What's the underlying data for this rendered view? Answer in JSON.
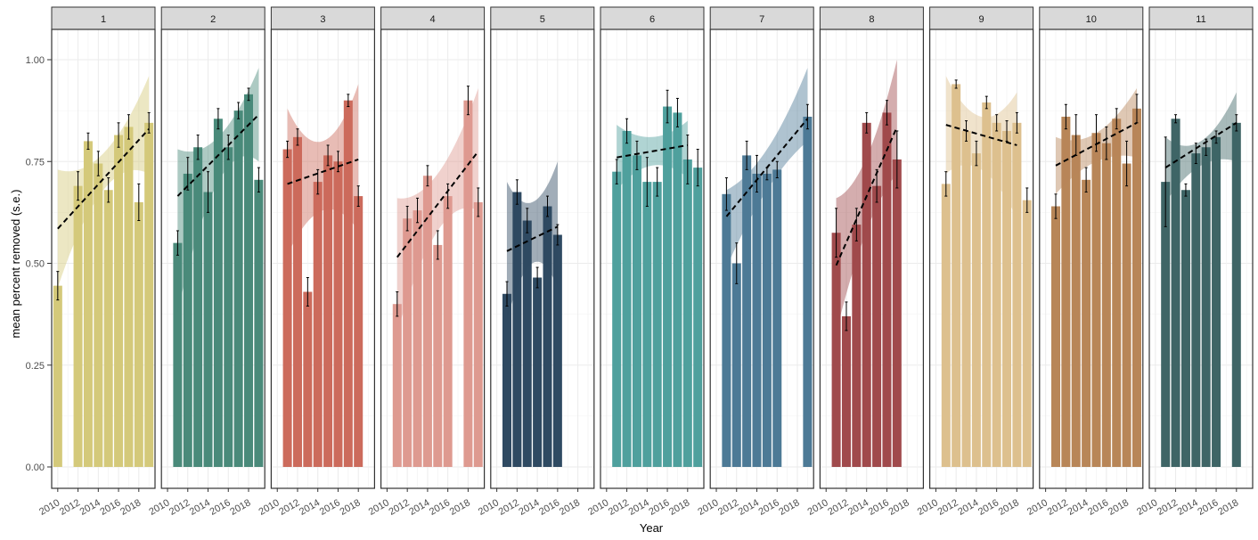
{
  "chart_data": {
    "type": "bar",
    "title": "",
    "xlabel": "Year",
    "ylabel": "mean percent removed (s.e.)",
    "ylim": [
      -0.05,
      1.08
    ],
    "xlim": [
      2009.4,
      2019.6
    ],
    "yticks": [
      0.0,
      0.25,
      0.5,
      0.75,
      1.0
    ],
    "ytick_labels": [
      "0.00",
      "0.25",
      "0.50",
      "0.75",
      "1.00"
    ],
    "xticks": [
      2010,
      2012,
      2014,
      2016,
      2018
    ],
    "xtick_labels": [
      "2010",
      "2012",
      "2014",
      "2016",
      "2018"
    ],
    "grid": true,
    "legend": "none",
    "trend_line_color": "#000000",
    "panels": [
      {
        "label": "1",
        "color": "#D4C97A",
        "years": [
          2010,
          2012,
          2013,
          2014,
          2015,
          2016,
          2017,
          2018,
          2019
        ],
        "values": [
          0.445,
          0.69,
          0.8,
          0.745,
          0.68,
          0.815,
          0.835,
          0.65,
          0.845
        ],
        "se": [
          0.035,
          0.035,
          0.02,
          0.03,
          0.03,
          0.03,
          0.03,
          0.045,
          0.025
        ],
        "trend": {
          "x": [
            2010,
            2019
          ],
          "y": [
            0.585,
            0.83
          ]
        },
        "ribbon": {
          "x": [
            2010,
            2014.5,
            2019
          ],
          "upper": [
            0.73,
            0.77,
            0.96
          ],
          "lower": [
            0.44,
            0.68,
            0.72
          ]
        }
      },
      {
        "label": "2",
        "color": "#4A8A7A",
        "years": [
          2011,
          2012,
          2013,
          2014,
          2015,
          2016,
          2017,
          2018,
          2019
        ],
        "values": [
          0.55,
          0.72,
          0.785,
          0.675,
          0.855,
          0.785,
          0.875,
          0.915,
          0.705
        ],
        "se": [
          0.03,
          0.04,
          0.03,
          0.05,
          0.025,
          0.03,
          0.02,
          0.015,
          0.03
        ],
        "trend": {
          "x": [
            2011,
            2019
          ],
          "y": [
            0.665,
            0.865
          ]
        },
        "ribbon": {
          "x": [
            2011,
            2015,
            2019
          ],
          "upper": [
            0.78,
            0.81,
            0.98
          ],
          "lower": [
            0.38,
            0.7,
            0.75
          ]
        }
      },
      {
        "label": "3",
        "color": "#CC6B5C",
        "years": [
          2011,
          2012,
          2013,
          2014,
          2015,
          2016,
          2017,
          2018
        ],
        "values": [
          0.78,
          0.81,
          0.43,
          0.7,
          0.765,
          0.75,
          0.9,
          0.665
        ],
        "se": [
          0.02,
          0.02,
          0.035,
          0.03,
          0.025,
          0.025,
          0.015,
          0.025
        ],
        "trend": {
          "x": [
            2011,
            2018
          ],
          "y": [
            0.695,
            0.755
          ]
        },
        "ribbon": {
          "x": [
            2011,
            2014.5,
            2018
          ],
          "upper": [
            0.88,
            0.8,
            0.94
          ],
          "lower": [
            0.52,
            0.63,
            0.58
          ]
        }
      },
      {
        "label": "4",
        "color": "#DE9A90",
        "years": [
          2011,
          2012,
          2013,
          2014,
          2015,
          2016,
          2018,
          2019
        ],
        "values": [
          0.4,
          0.61,
          0.63,
          0.715,
          0.545,
          0.665,
          0.9,
          0.65
        ],
        "se": [
          0.03,
          0.03,
          0.03,
          0.025,
          0.035,
          0.03,
          0.035,
          0.035
        ],
        "trend": {
          "x": [
            2011,
            2019
          ],
          "y": [
            0.515,
            0.775
          ]
        },
        "ribbon": {
          "x": [
            2011,
            2015,
            2019
          ],
          "upper": [
            0.66,
            0.72,
            0.93
          ],
          "lower": [
            0.33,
            0.58,
            0.63
          ]
        }
      },
      {
        "label": "5",
        "color": "#2F4A62",
        "years": [
          2011,
          2012,
          2013,
          2014,
          2015,
          2016
        ],
        "values": [
          0.425,
          0.675,
          0.605,
          0.465,
          0.64,
          0.57
        ],
        "se": [
          0.03,
          0.03,
          0.03,
          0.025,
          0.025,
          0.025
        ],
        "trend": {
          "x": [
            2011,
            2016
          ],
          "y": [
            0.53,
            0.59
          ]
        },
        "ribbon": {
          "x": [
            2011,
            2013.5,
            2016
          ],
          "upper": [
            0.7,
            0.65,
            0.75
          ],
          "lower": [
            0.36,
            0.5,
            0.44
          ]
        }
      },
      {
        "label": "6",
        "color": "#4FA09D",
        "years": [
          2011,
          2012,
          2013,
          2014,
          2015,
          2016,
          2017,
          2018,
          2019
        ],
        "values": [
          0.725,
          0.825,
          0.765,
          0.7,
          0.7,
          0.885,
          0.87,
          0.755,
          0.735
        ],
        "se": [
          0.03,
          0.03,
          0.035,
          0.06,
          0.035,
          0.04,
          0.035,
          0.06,
          0.045
        ],
        "trend": {
          "x": [
            2011,
            2018
          ],
          "y": [
            0.76,
            0.79
          ]
        },
        "ribbon": {
          "x": [
            2011,
            2014.5,
            2018
          ],
          "upper": [
            0.84,
            0.81,
            0.85
          ],
          "lower": [
            0.68,
            0.74,
            0.71
          ]
        }
      },
      {
        "label": "7",
        "color": "#4D7A96",
        "years": [
          2011,
          2012,
          2013,
          2014,
          2015,
          2016,
          2019
        ],
        "values": [
          0.67,
          0.5,
          0.765,
          0.72,
          0.72,
          0.73,
          0.86
        ],
        "se": [
          0.04,
          0.05,
          0.035,
          0.045,
          0.015,
          0.02,
          0.03
        ],
        "trend": {
          "x": [
            2011,
            2019
          ],
          "y": [
            0.615,
            0.855
          ]
        },
        "ribbon": {
          "x": [
            2011,
            2015,
            2019
          ],
          "upper": [
            0.68,
            0.78,
            0.98
          ],
          "lower": [
            0.49,
            0.68,
            0.8
          ]
        }
      },
      {
        "label": "8",
        "color": "#A04A4C",
        "years": [
          2011,
          2012,
          2013,
          2014,
          2015,
          2016,
          2017
        ],
        "values": [
          0.575,
          0.37,
          0.595,
          0.845,
          0.69,
          0.87,
          0.755
        ],
        "se": [
          0.06,
          0.035,
          0.04,
          0.025,
          0.04,
          0.03,
          0.07
        ],
        "trend": {
          "x": [
            2011,
            2017
          ],
          "y": [
            0.495,
            0.835
          ]
        },
        "ribbon": {
          "x": [
            2011,
            2014,
            2017
          ],
          "upper": [
            0.66,
            0.76,
            1.0
          ],
          "lower": [
            0.33,
            0.58,
            0.72
          ]
        }
      },
      {
        "label": "9",
        "color": "#DDC08E",
        "years": [
          2011,
          2012,
          2013,
          2014,
          2015,
          2016,
          2017,
          2018,
          2019
        ],
        "values": [
          0.695,
          0.94,
          0.825,
          0.77,
          0.895,
          0.845,
          0.825,
          0.845,
          0.655
        ],
        "se": [
          0.03,
          0.01,
          0.025,
          0.03,
          0.015,
          0.02,
          0.025,
          0.025,
          0.03
        ],
        "trend": {
          "x": [
            2011,
            2018
          ],
          "y": [
            0.84,
            0.79
          ]
        },
        "ribbon": {
          "x": [
            2011,
            2014.5,
            2018
          ],
          "upper": [
            0.96,
            0.86,
            0.92
          ],
          "lower": [
            0.72,
            0.73,
            0.61
          ]
        }
      },
      {
        "label": "10",
        "color": "#B88658",
        "years": [
          2011,
          2012,
          2013,
          2014,
          2015,
          2016,
          2017,
          2018,
          2019
        ],
        "values": [
          0.64,
          0.86,
          0.815,
          0.705,
          0.82,
          0.795,
          0.855,
          0.745,
          0.88
        ],
        "se": [
          0.03,
          0.03,
          0.05,
          0.03,
          0.045,
          0.04,
          0.025,
          0.055,
          0.035
        ],
        "trend": {
          "x": [
            2011,
            2019
          ],
          "y": [
            0.74,
            0.845
          ]
        },
        "ribbon": {
          "x": [
            2011,
            2015,
            2019
          ],
          "upper": [
            0.81,
            0.82,
            0.93
          ],
          "lower": [
            0.67,
            0.75,
            0.76
          ]
        }
      },
      {
        "label": "11",
        "color": "#3F6566",
        "years": [
          2011,
          2012,
          2013,
          2014,
          2015,
          2016,
          2018
        ],
        "values": [
          0.7,
          0.855,
          0.68,
          0.77,
          0.785,
          0.81,
          0.845
        ],
        "se": [
          0.11,
          0.01,
          0.015,
          0.025,
          0.02,
          0.015,
          0.02
        ],
        "trend": {
          "x": [
            2011,
            2018
          ],
          "y": [
            0.735,
            0.845
          ]
        },
        "ribbon": {
          "x": [
            2011,
            2014.5,
            2018
          ],
          "upper": [
            0.81,
            0.8,
            0.92
          ],
          "lower": [
            0.65,
            0.74,
            0.75
          ]
        }
      }
    ]
  }
}
